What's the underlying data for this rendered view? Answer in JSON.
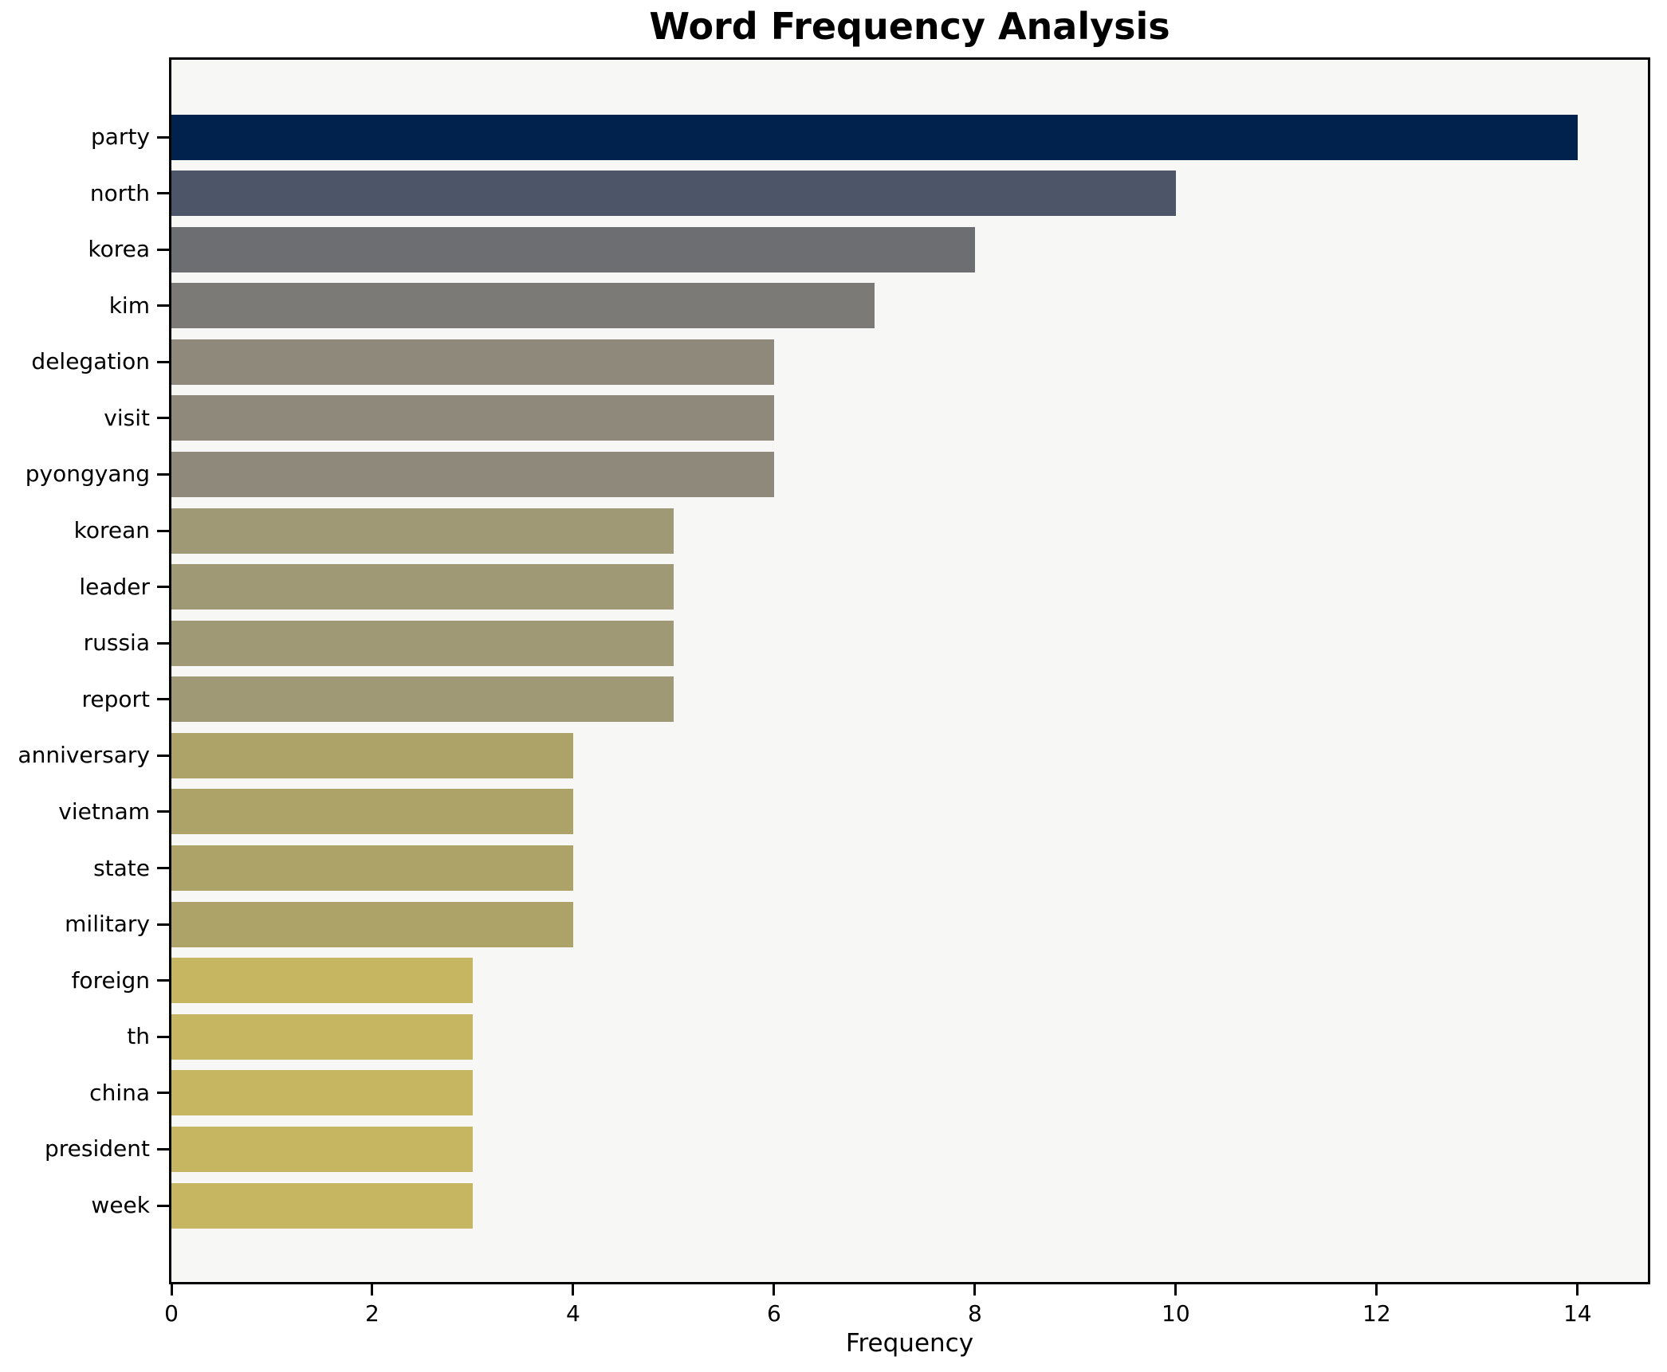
{
  "chart_data": {
    "type": "bar",
    "orientation": "horizontal",
    "title": "Word Frequency Analysis",
    "xlabel": "Frequency",
    "ylabel": "",
    "categories": [
      "party",
      "north",
      "korea",
      "kim",
      "delegation",
      "visit",
      "pyongyang",
      "korean",
      "leader",
      "russia",
      "report",
      "anniversary",
      "vietnam",
      "state",
      "military",
      "foreign",
      "th",
      "china",
      "president",
      "week"
    ],
    "values": [
      14,
      10,
      8,
      7,
      6,
      6,
      6,
      5,
      5,
      5,
      5,
      4,
      4,
      4,
      4,
      3,
      3,
      3,
      3,
      3
    ],
    "bar_colors": [
      "#01224d",
      "#4d5669",
      "#6c6e71",
      "#7b7a77",
      "#8e897b",
      "#8e897b",
      "#8e897b",
      "#9f9975",
      "#9f9975",
      "#9f9975",
      "#9f9975",
      "#ada368",
      "#ada368",
      "#ada368",
      "#ada368",
      "#c6b662",
      "#c6b662",
      "#c6b662",
      "#c6b662",
      "#c6b662"
    ],
    "xlim": [
      0,
      14.7
    ],
    "xticks": [
      0,
      2,
      4,
      6,
      8,
      10,
      12,
      14
    ],
    "grid": false,
    "legend": false,
    "plot_background": "#f7f7f6",
    "figure_background": "#ffffff",
    "spine_color": "#000000"
  }
}
